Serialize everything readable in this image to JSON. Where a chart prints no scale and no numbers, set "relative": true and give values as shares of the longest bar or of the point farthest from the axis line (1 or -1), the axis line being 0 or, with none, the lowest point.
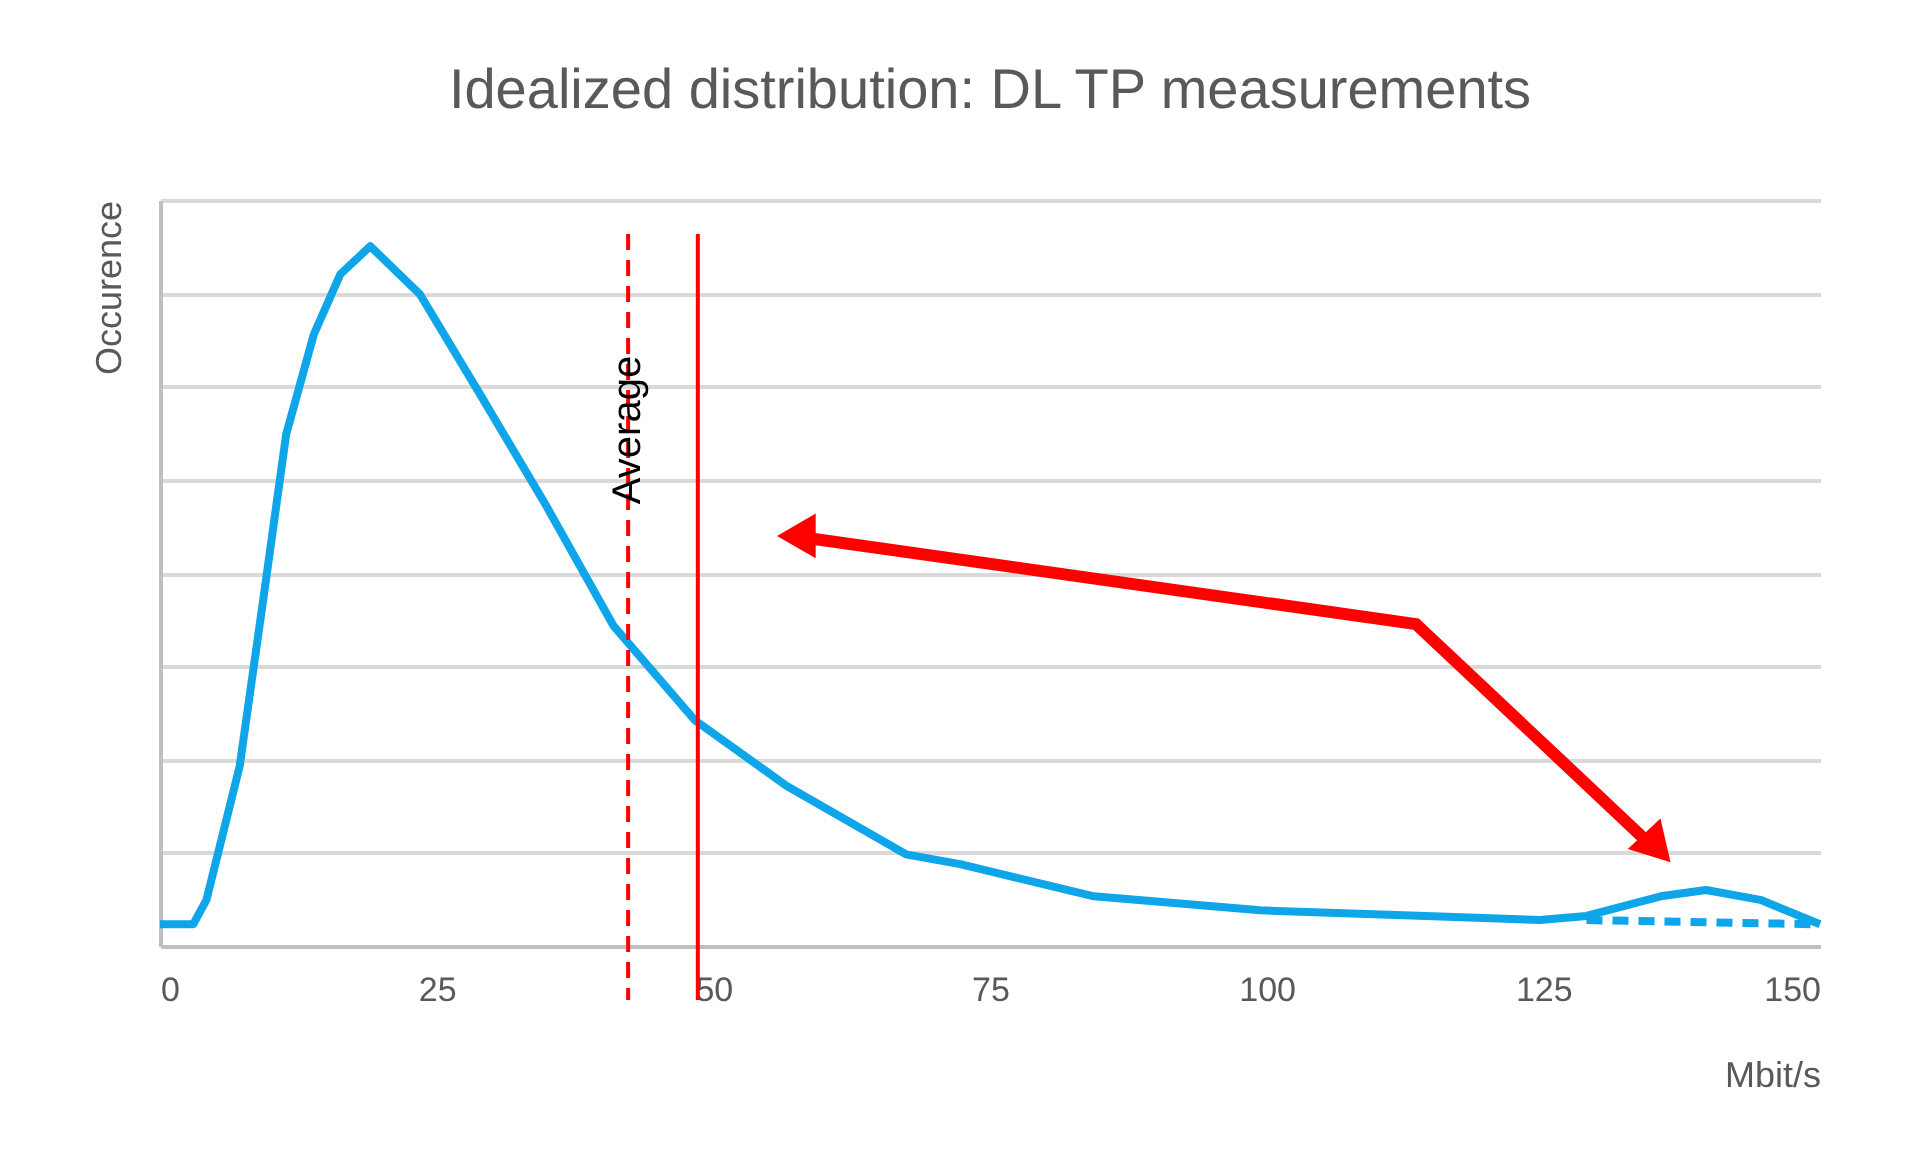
{
  "chart_data": {
    "type": "line",
    "title": "Idealized distribution: DL TP measurements",
    "xlabel": "Mbit/s",
    "ylabel": "Occurence",
    "relative": true,
    "xlim": [
      0,
      150
    ],
    "xticks": [
      0,
      25,
      50,
      75,
      100,
      125,
      150
    ],
    "grid": "y",
    "series": [
      {
        "color": "#0ea5e9",
        "line_style": "solid",
        "x": [
          0,
          3,
          4.2,
          7.2,
          9.4,
          11.4,
          13.9,
          16.3,
          19,
          23.5,
          28.9,
          34.9,
          41,
          48.3,
          56.6,
          67.4,
          72.3,
          84.4,
          99.4,
          114.4,
          124.7,
          128.9,
          135.6,
          139.7,
          144.6,
          150
        ],
        "values": [
          0.031,
          0.031,
          0.066,
          0.257,
          0.503,
          0.731,
          0.874,
          0.96,
          1.0,
          0.931,
          0.789,
          0.629,
          0.457,
          0.323,
          0.229,
          0.131,
          0.117,
          0.071,
          0.051,
          0.043,
          0.037,
          0.043,
          0.071,
          0.08,
          0.066,
          0.031
        ]
      },
      {
        "color": "#0ea5e9",
        "line_style": "dashed",
        "x": [
          128.9,
          150
        ],
        "values": [
          0.037,
          0.031
        ]
      }
    ],
    "ref_lines": [
      {
        "axis": "x",
        "value": 42.3,
        "label": "Average",
        "color": "#ff0000",
        "line_style": "dashed"
      },
      {
        "axis": "x",
        "value": 48.6,
        "color": "#ff0000",
        "line_style": "solid"
      }
    ]
  }
}
